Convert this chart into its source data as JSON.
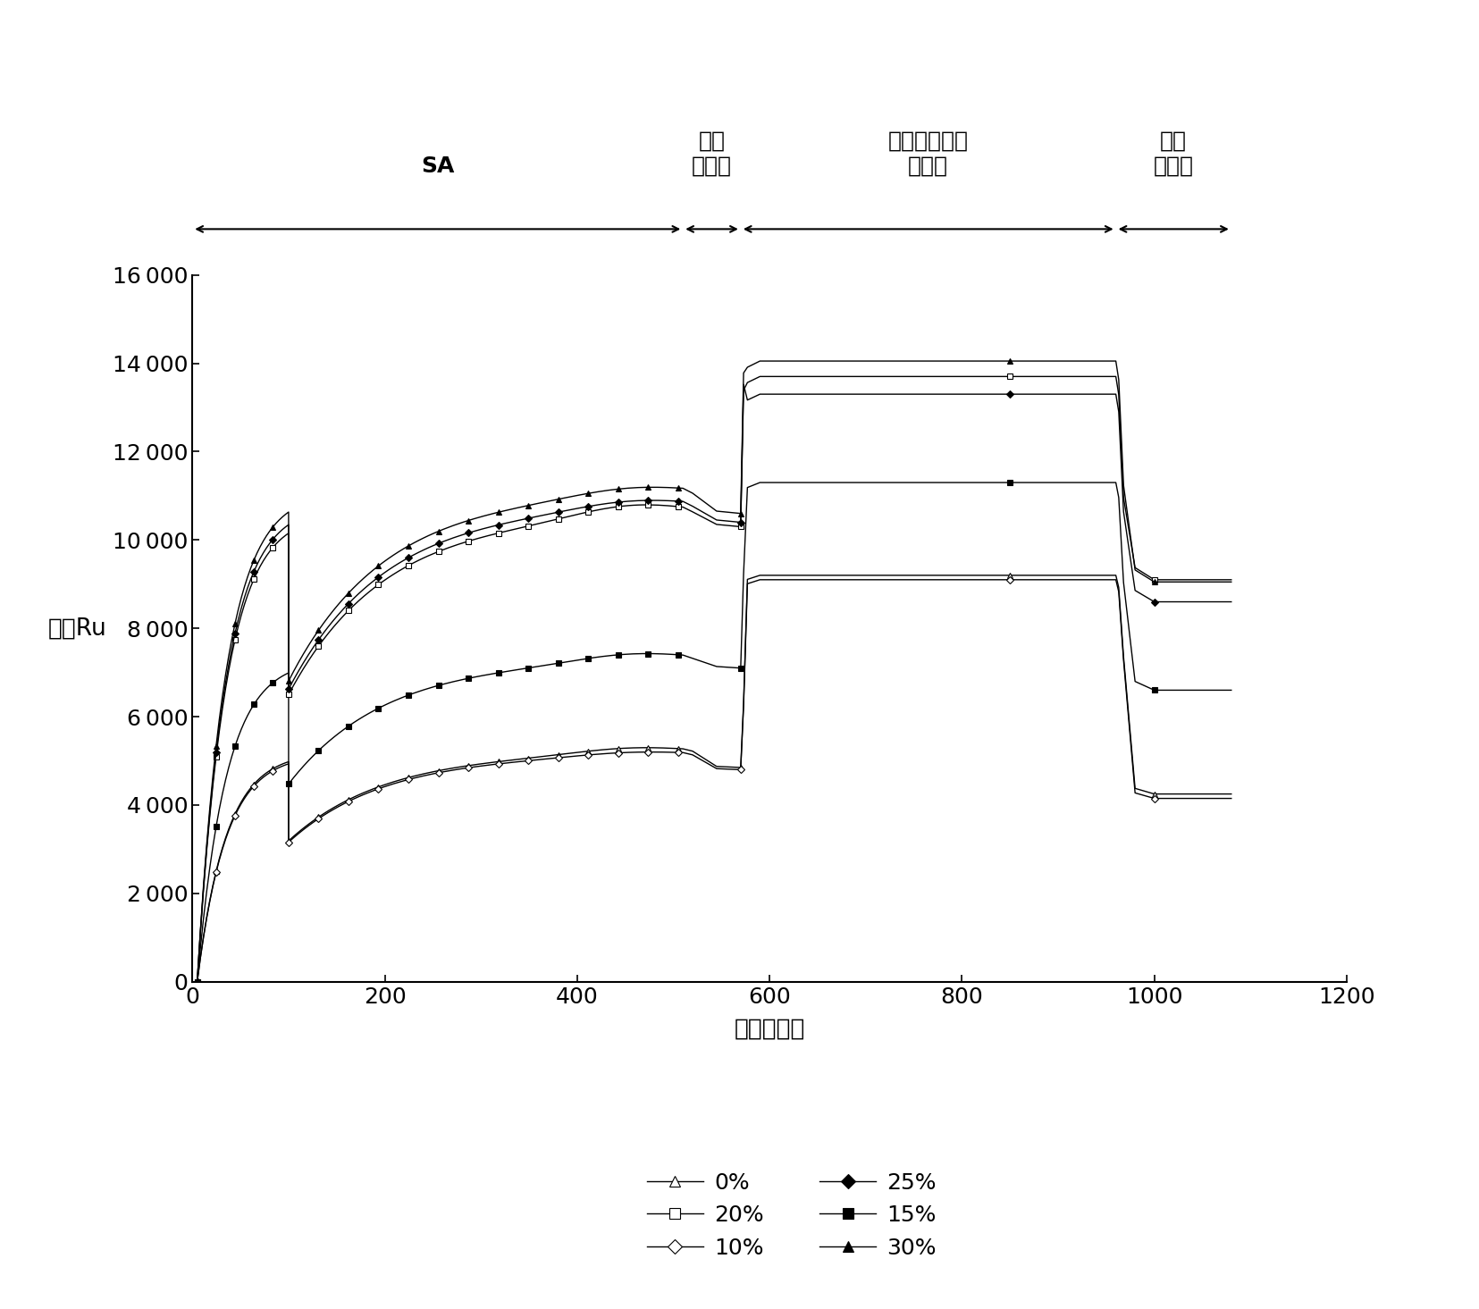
{
  "label_sa": "SA",
  "label_run1": "运行\n缓冲液",
  "label_ethanolamine": "乙醇胺硒酸盐\n缓冲液",
  "label_run2": "运行\n缓冲液",
  "ylabel": "响应Ru",
  "xlabel": "时间（秒）",
  "xlim": [
    0,
    1200
  ],
  "ylim": [
    0,
    16000
  ],
  "xticks": [
    0,
    200,
    400,
    600,
    800,
    1000,
    1200
  ],
  "yticks": [
    0,
    2000,
    4000,
    6000,
    8000,
    10000,
    12000,
    14000,
    16000
  ],
  "phase_boundaries": [
    0,
    510,
    570,
    960,
    1080
  ],
  "series": [
    {
      "label": "0%",
      "marker": "^",
      "filled": false,
      "sa_plateau": 5200,
      "sa_peak": 5350,
      "run1_y": 4850,
      "eth_y": 9200,
      "run2_y": 4250
    },
    {
      "label": "10%",
      "marker": "D",
      "filled": false,
      "sa_plateau": 5150,
      "sa_peak": 5250,
      "run1_y": 4800,
      "eth_y": 9100,
      "run2_y": 4150
    },
    {
      "label": "15%",
      "marker": "s",
      "filled": true,
      "sa_plateau": 7300,
      "sa_peak": 7500,
      "run1_y": 7100,
      "eth_y": 11300,
      "run2_y": 6600
    },
    {
      "label": "20%",
      "marker": "s",
      "filled": false,
      "sa_plateau": 10600,
      "sa_peak": 10900,
      "run1_y": 10300,
      "eth_y": 13700,
      "run2_y": 9100
    },
    {
      "label": "25%",
      "marker": "D",
      "filled": true,
      "sa_plateau": 10800,
      "sa_peak": 11000,
      "run1_y": 10400,
      "eth_y": 13300,
      "run2_y": 8600
    },
    {
      "label": "30%",
      "marker": "^",
      "filled": true,
      "sa_plateau": 11100,
      "sa_peak": 11300,
      "run1_y": 10600,
      "eth_y": 14050,
      "run2_y": 9050
    }
  ]
}
